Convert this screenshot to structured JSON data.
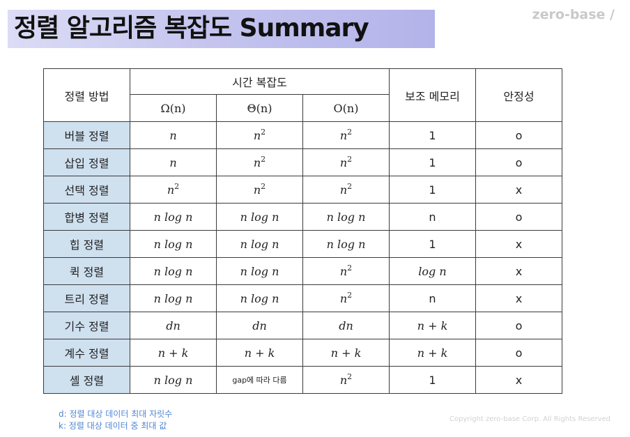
{
  "title": "정렬 알고리즘 복잡도 Summary",
  "brand": "zero-base /",
  "table": {
    "header": {
      "method": "정렬 방법",
      "time": "시간 복잡도",
      "omega": "Ω(n)",
      "theta": "Θ(n)",
      "bigo": "O(n)",
      "memory": "보조 메모리",
      "stable": "안정성"
    },
    "rows": [
      {
        "name": "버블 정렬",
        "omega": "n",
        "theta": "n²",
        "bigo": "n²",
        "memory": "1",
        "stable": "o"
      },
      {
        "name": "삽입 정렬",
        "omega": "n",
        "theta": "n²",
        "bigo": "n²",
        "memory": "1",
        "stable": "o"
      },
      {
        "name": "선택 정렬",
        "omega": "n²",
        "theta": "n²",
        "bigo": "n²",
        "memory": "1",
        "stable": "x"
      },
      {
        "name": "합병 정렬",
        "omega": "n log n",
        "theta": "n log n",
        "bigo": "n log n",
        "memory": "n",
        "stable": "o"
      },
      {
        "name": "힙 정렬",
        "omega": "n log n",
        "theta": "n log n",
        "bigo": "n log n",
        "memory": "1",
        "stable": "x"
      },
      {
        "name": "퀵 정렬",
        "omega": "n log n",
        "theta": "n log n",
        "bigo": "n²",
        "memory": "log n",
        "stable": "x"
      },
      {
        "name": "트리 정렬",
        "omega": "n log n",
        "theta": "n log n",
        "bigo": "n²",
        "memory": "n",
        "stable": "x"
      },
      {
        "name": "기수 정렬",
        "omega": "dn",
        "theta": "dn",
        "bigo": "dn",
        "memory": "n + k",
        "stable": "o"
      },
      {
        "name": "계수 정렬",
        "omega": "n + k",
        "theta": "n + k",
        "bigo": "n + k",
        "memory": "n + k",
        "stable": "o"
      },
      {
        "name": "셸 정렬",
        "omega": "n log n",
        "theta": "gap에 따라 다름",
        "bigo": "n²",
        "memory": "1",
        "stable": "x"
      }
    ]
  },
  "notes": {
    "d": "d: 정렬 대상 데이터 최대 자릿수",
    "k": "k: 정렬 대상 데이터 중 최대 값"
  },
  "copyright": "Copyright zero-base Corp. All Rights Reserved"
}
